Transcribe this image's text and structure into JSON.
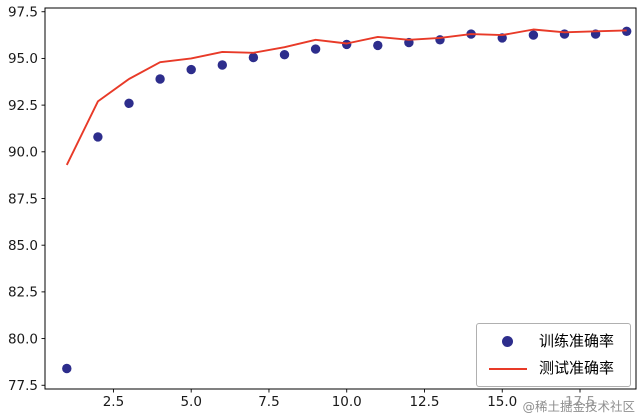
{
  "watermark": "@稀土掘金技术社区",
  "chart_data": {
    "type": "scatter",
    "x": [
      1,
      2,
      3,
      4,
      5,
      6,
      7,
      8,
      9,
      10,
      11,
      12,
      13,
      14,
      15,
      16,
      17,
      18,
      19
    ],
    "series": [
      {
        "name": "训练准确率",
        "type": "scatter",
        "color": "#2d2d8c",
        "values": [
          78.4,
          90.8,
          92.6,
          93.9,
          94.4,
          94.65,
          95.05,
          95.2,
          95.5,
          95.75,
          95.7,
          95.85,
          96.0,
          96.3,
          96.1,
          96.25,
          96.3,
          96.3,
          96.45
        ]
      },
      {
        "name": "测试准确率",
        "type": "line",
        "color": "#e83a28",
        "values": [
          89.3,
          92.7,
          93.9,
          94.8,
          95.0,
          95.35,
          95.3,
          95.6,
          96.0,
          95.8,
          96.15,
          96.0,
          96.1,
          96.3,
          96.25,
          96.55,
          96.4,
          96.45,
          96.5
        ]
      }
    ],
    "xticks": [
      2.5,
      5.0,
      7.5,
      10.0,
      12.5,
      15.0,
      17.5
    ],
    "yticks": [
      77.5,
      80.0,
      82.5,
      85.0,
      87.5,
      90.0,
      92.5,
      95.0,
      97.5
    ],
    "xlim": [
      0.3,
      19.3
    ],
    "ylim": [
      77.3,
      97.7
    ],
    "grid": false,
    "legend_position": "lower right"
  }
}
